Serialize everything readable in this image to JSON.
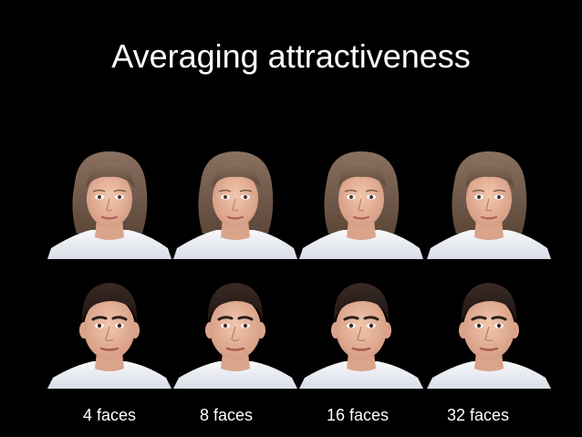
{
  "title": "Averaging attractiveness",
  "captions": [
    "4 faces",
    "8 faces",
    "16 faces",
    "32 faces"
  ],
  "rows": [
    {
      "name": "female-composites",
      "images": [
        {
          "label": "female composite of 4 faces",
          "icon": "female-face-portrait"
        },
        {
          "label": "female composite of 8 faces",
          "icon": "female-face-portrait"
        },
        {
          "label": "female composite of 16 faces",
          "icon": "female-face-portrait"
        },
        {
          "label": "female composite of 32 faces",
          "icon": "female-face-portrait"
        }
      ]
    },
    {
      "name": "male-composites",
      "images": [
        {
          "label": "male composite of 4 faces",
          "icon": "male-face-portrait"
        },
        {
          "label": "male composite of 8 faces",
          "icon": "male-face-portrait"
        },
        {
          "label": "male composite of 16 faces",
          "icon": "male-face-portrait"
        },
        {
          "label": "male composite of 32 faces",
          "icon": "male-face-portrait"
        }
      ]
    }
  ],
  "colors": {
    "background": "#000000",
    "text": "#ffffff",
    "skin": "#e8b59c",
    "female_hair": "#6e5848",
    "male_hair": "#2a1e1a",
    "collar": "#eef1f6"
  }
}
